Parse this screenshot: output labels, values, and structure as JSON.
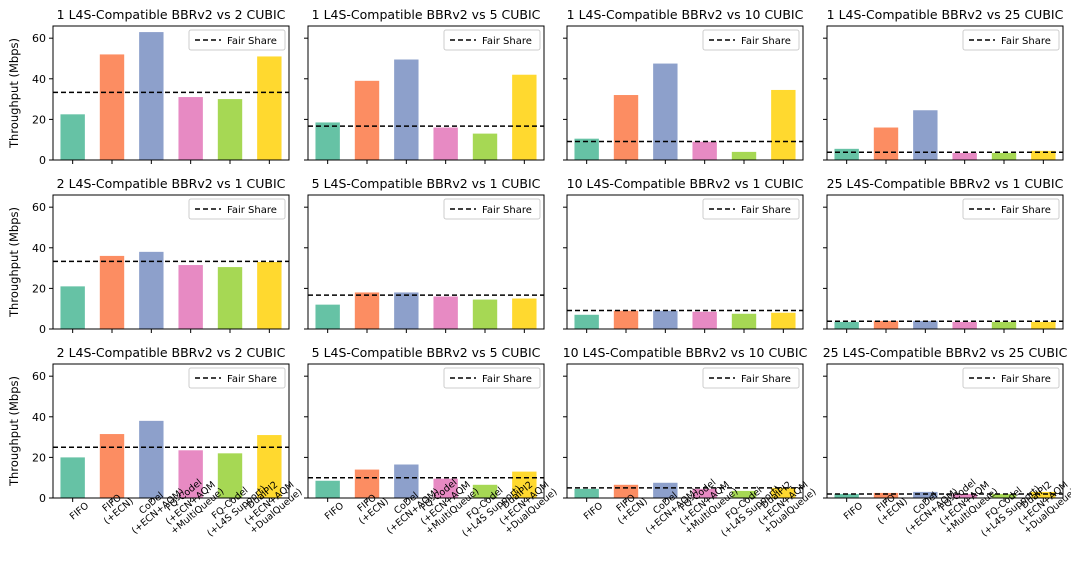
{
  "chart_data": {
    "type": "bar",
    "ylabel": "Throughput (Mbps)",
    "ylim": [
      0,
      66
    ],
    "yticks": [
      0,
      20,
      40,
      60
    ],
    "legend": {
      "label": "Fair Share",
      "placement": "top-right",
      "style": "dashed"
    },
    "categories": [
      "FIFO",
      "FIFO\n(+ECN)",
      "CoDel\n(+ECN+AQM)",
      "FQ-Codel\n(+ECN+AQM\n+MultiQueue)",
      "FQ-Codel\n(+L4S Support)",
      "DualPI2\n(+ECN+AQM\n+DualQueue)"
    ],
    "colors": [
      "#66c2a5",
      "#fc8d62",
      "#8da0cb",
      "#e78ac3",
      "#a6d854",
      "#ffd92f"
    ],
    "panels": [
      {
        "title": "1 L4S-Compatible BBRv2 vs 2 CUBIC",
        "fair_share": 33.3,
        "values": [
          22.5,
          52,
          63,
          31,
          30,
          51
        ]
      },
      {
        "title": "1 L4S-Compatible BBRv2 vs 5 CUBIC",
        "fair_share": 16.7,
        "values": [
          18.5,
          39,
          49.5,
          16,
          13,
          42
        ]
      },
      {
        "title": "1 L4S-Compatible BBRv2 vs 10 CUBIC",
        "fair_share": 9.1,
        "values": [
          10.5,
          32,
          47.5,
          9,
          4,
          34.5
        ]
      },
      {
        "title": "1 L4S-Compatible BBRv2 vs 25 CUBIC",
        "fair_share": 3.8,
        "values": [
          5.5,
          16,
          24.5,
          3.5,
          3.5,
          4.5
        ]
      },
      {
        "title": "2 L4S-Compatible BBRv2 vs 1 CUBIC",
        "fair_share": 33.3,
        "values": [
          21,
          36,
          38,
          31.5,
          30.5,
          33
        ]
      },
      {
        "title": "5 L4S-Compatible BBRv2 vs 1 CUBIC",
        "fair_share": 16.7,
        "values": [
          12,
          18,
          18,
          16,
          14.5,
          15
        ]
      },
      {
        "title": "10 L4S-Compatible BBRv2 vs 1 CUBIC",
        "fair_share": 9.1,
        "values": [
          7,
          9,
          9,
          8.5,
          7.5,
          8
        ]
      },
      {
        "title": "25 L4S-Compatible BBRv2 vs 1 CUBIC",
        "fair_share": 3.8,
        "values": [
          3.5,
          4,
          4,
          3.5,
          3.5,
          3.5
        ]
      },
      {
        "title": "2 L4S-Compatible BBRv2 vs 2 CUBIC",
        "fair_share": 25,
        "values": [
          20,
          31.5,
          38,
          23.5,
          22,
          31
        ]
      },
      {
        "title": "5 L4S-Compatible BBRv2 vs 5 CUBIC",
        "fair_share": 10,
        "values": [
          8.5,
          14,
          16.5,
          9.5,
          6.5,
          13
        ]
      },
      {
        "title": "10 L4S-Compatible BBRv2 vs 10 CUBIC",
        "fair_share": 5,
        "values": [
          4.5,
          6.5,
          7.5,
          4.5,
          3.5,
          5
        ]
      },
      {
        "title": "25 L4S-Compatible BBRv2 vs 25 CUBIC",
        "fair_share": 2,
        "values": [
          2,
          2.5,
          3,
          2,
          2,
          3
        ]
      }
    ]
  }
}
